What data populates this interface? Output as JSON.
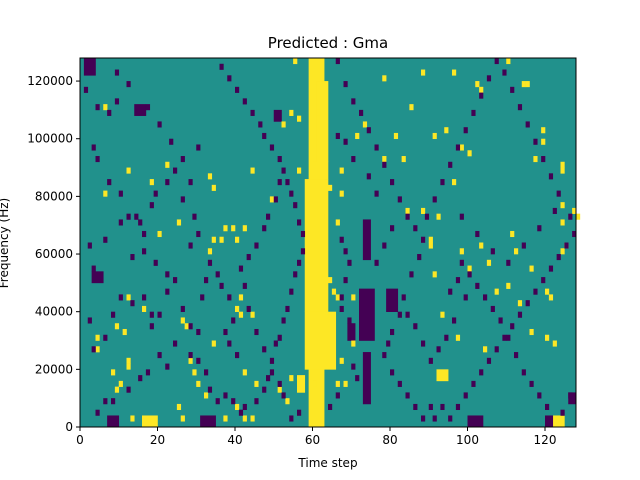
{
  "chart_data": {
    "type": "heatmap",
    "title": "Predicted : Gma",
    "xlabel": "Time step",
    "ylabel": "Frequency (Hz)",
    "xlim": [
      0,
      128
    ],
    "ylim": [
      0,
      128000
    ],
    "x_ticks": [
      0,
      20,
      40,
      60,
      80,
      100,
      120
    ],
    "y_ticks": [
      0,
      20000,
      40000,
      60000,
      80000,
      100000,
      120000
    ],
    "cols": 128,
    "rows": 64,
    "row_height_hz": 2000,
    "grid": false,
    "legend": "none",
    "colors": {
      "background": "#21918c",
      "high": "#fde725",
      "low": "#440154"
    },
    "high_runs": [
      {
        "x0": 59,
        "x1": 63,
        "y0": 0,
        "y1": 128000
      },
      {
        "x0": 58,
        "x1": 66,
        "y0": 20000,
        "y1": 40000
      },
      {
        "x0": 58,
        "x1": 64,
        "y0": 40000,
        "y1": 86000
      },
      {
        "x0": 60,
        "x1": 64,
        "y0": 86000,
        "y1": 92000
      },
      {
        "x0": 61,
        "x1": 64,
        "y0": 92000,
        "y1": 120000
      },
      {
        "x0": 16,
        "x1": 20,
        "y0": 0,
        "y1": 4000
      },
      {
        "x0": 92,
        "x1": 95,
        "y0": 16000,
        "y1": 20000
      },
      {
        "x0": 122,
        "x1": 125,
        "y0": 0,
        "y1": 4000
      },
      {
        "x0": 56,
        "x1": 58,
        "y0": 12000,
        "y1": 18000
      }
    ],
    "low_runs": [
      {
        "x0": 1,
        "x1": 4,
        "y0": 122000,
        "y1": 128000
      },
      {
        "x0": 7,
        "x1": 10,
        "y0": 0,
        "y1": 4000
      },
      {
        "x0": 31,
        "x1": 35,
        "y0": 0,
        "y1": 4000
      },
      {
        "x0": 100,
        "x1": 104,
        "y0": 0,
        "y1": 4000
      },
      {
        "x0": 120,
        "x1": 122,
        "y0": 0,
        "y1": 4000
      },
      {
        "x0": 126,
        "x1": 128,
        "y0": 8000,
        "y1": 12000
      },
      {
        "x0": 72,
        "x1": 76,
        "y0": 30000,
        "y1": 48000
      },
      {
        "x0": 73,
        "x1": 75,
        "y0": 8000,
        "y1": 26000
      },
      {
        "x0": 79,
        "x1": 82,
        "y0": 40000,
        "y1": 48000
      },
      {
        "x0": 73,
        "x1": 75,
        "y0": 58000,
        "y1": 72000
      },
      {
        "x0": 14,
        "x1": 17,
        "y0": 108000,
        "y1": 112000
      },
      {
        "x0": 3,
        "x1": 6,
        "y0": 50000,
        "y1": 54000
      },
      {
        "x0": 69,
        "x1": 71,
        "y0": 30000,
        "y1": 36000
      },
      {
        "x0": 50,
        "x1": 52,
        "y0": 106000,
        "y1": 110000
      }
    ],
    "high_cells": [
      [
        6,
        110000
      ],
      [
        6,
        80000
      ],
      [
        12,
        88000
      ],
      [
        18,
        84000
      ],
      [
        22,
        90000
      ],
      [
        25,
        70000
      ],
      [
        20,
        66000
      ],
      [
        12,
        44000
      ],
      [
        9,
        34000
      ],
      [
        4,
        30000
      ],
      [
        4,
        26000
      ],
      [
        13,
        2000
      ],
      [
        25,
        6000
      ],
      [
        26,
        2000
      ],
      [
        37,
        2000
      ],
      [
        40,
        6000
      ],
      [
        42,
        2000
      ],
      [
        44,
        2000
      ],
      [
        42,
        18000
      ],
      [
        44,
        38000
      ],
      [
        41,
        38000
      ],
      [
        42,
        68000
      ],
      [
        34,
        64000
      ],
      [
        33,
        60000
      ],
      [
        40,
        64000
      ],
      [
        44,
        88000
      ],
      [
        49,
        78000
      ],
      [
        52,
        104000
      ],
      [
        54,
        108000
      ],
      [
        56,
        106000
      ],
      [
        56,
        88000
      ],
      [
        55,
        126000
      ],
      [
        61,
        108000
      ],
      [
        62,
        72000
      ],
      [
        66,
        70000
      ],
      [
        67,
        80000
      ],
      [
        67,
        88000
      ],
      [
        73,
        104000
      ],
      [
        71,
        100000
      ],
      [
        78,
        92000
      ],
      [
        83,
        92000
      ],
      [
        84,
        74000
      ],
      [
        88,
        74000
      ],
      [
        92,
        72000
      ],
      [
        90,
        64000
      ],
      [
        90,
        62000
      ],
      [
        98,
        60000
      ],
      [
        103,
        62000
      ],
      [
        105,
        56000
      ],
      [
        107,
        46000
      ],
      [
        110,
        48000
      ],
      [
        113,
        42000
      ],
      [
        91,
        52000
      ],
      [
        93,
        38000
      ],
      [
        97,
        30000
      ],
      [
        104,
        26000
      ],
      [
        116,
        32000
      ],
      [
        121,
        44000
      ],
      [
        120,
        46000
      ],
      [
        120,
        30000
      ],
      [
        122,
        28000
      ],
      [
        116,
        54000
      ],
      [
        124,
        70000
      ],
      [
        128,
        72000
      ],
      [
        124,
        88000
      ],
      [
        127,
        74000
      ],
      [
        117,
        92000
      ],
      [
        124,
        90000
      ],
      [
        124,
        76000
      ],
      [
        119,
        98000
      ],
      [
        119,
        102000
      ],
      [
        114,
        118000
      ],
      [
        115,
        118000
      ],
      [
        110,
        126000
      ],
      [
        102,
        118000
      ],
      [
        103,
        116000
      ],
      [
        96,
        122000
      ],
      [
        88,
        122000
      ],
      [
        78,
        120000
      ],
      [
        85,
        110000
      ],
      [
        81,
        100000
      ],
      [
        98,
        96000
      ],
      [
        100,
        94000
      ],
      [
        94,
        102000
      ],
      [
        91,
        100000
      ],
      [
        111,
        66000
      ],
      [
        112,
        60000
      ],
      [
        124,
        60000
      ],
      [
        125,
        62000
      ],
      [
        100,
        54000
      ],
      [
        96,
        84000
      ],
      [
        64,
        82000
      ],
      [
        64,
        50000
      ],
      [
        65,
        46000
      ],
      [
        66,
        44000
      ],
      [
        70,
        44000
      ],
      [
        70,
        28000
      ],
      [
        67,
        22000
      ],
      [
        66,
        14000
      ],
      [
        68,
        14000
      ],
      [
        60,
        14000
      ],
      [
        54,
        16000
      ],
      [
        51,
        12000
      ],
      [
        53,
        8000
      ],
      [
        45,
        14000
      ],
      [
        41,
        44000
      ],
      [
        40,
        40000
      ],
      [
        36,
        64000
      ],
      [
        37,
        68000
      ],
      [
        39,
        68000
      ],
      [
        34,
        82000
      ],
      [
        33,
        86000
      ],
      [
        26,
        36000
      ],
      [
        27,
        34000
      ],
      [
        34,
        28000
      ],
      [
        28,
        22000
      ],
      [
        29,
        18000
      ],
      [
        32,
        10000
      ],
      [
        30,
        14000
      ],
      [
        16,
        40000
      ],
      [
        11,
        32000
      ],
      [
        12,
        22000
      ],
      [
        12,
        20000
      ],
      [
        10,
        14000
      ],
      [
        9,
        12000
      ],
      [
        8,
        18000
      ]
    ],
    "low_cells": [
      [
        1,
        116000
      ],
      [
        4,
        110000
      ],
      [
        7,
        108000
      ],
      [
        9,
        112000
      ],
      [
        3,
        96000
      ],
      [
        4,
        92000
      ],
      [
        7,
        84000
      ],
      [
        10,
        80000
      ],
      [
        10,
        70000
      ],
      [
        12,
        72000
      ],
      [
        14,
        72000
      ],
      [
        15,
        70000
      ],
      [
        6,
        64000
      ],
      [
        2,
        62000
      ],
      [
        3,
        54000
      ],
      [
        13,
        58000
      ],
      [
        16,
        60000
      ],
      [
        19,
        56000
      ],
      [
        22,
        52000
      ],
      [
        24,
        50000
      ],
      [
        22,
        46000
      ],
      [
        26,
        40000
      ],
      [
        28,
        34000
      ],
      [
        30,
        32000
      ],
      [
        18,
        34000
      ],
      [
        18,
        38000
      ],
      [
        20,
        24000
      ],
      [
        22,
        20000
      ],
      [
        17,
        18000
      ],
      [
        15,
        16000
      ],
      [
        12,
        12000
      ],
      [
        8,
        8000
      ],
      [
        6,
        8000
      ],
      [
        4,
        4000
      ],
      [
        3,
        26000
      ],
      [
        2,
        36000
      ],
      [
        6,
        30000
      ],
      [
        8,
        38000
      ],
      [
        10,
        44000
      ],
      [
        13,
        42000
      ],
      [
        16,
        44000
      ],
      [
        20,
        38000
      ],
      [
        24,
        28000
      ],
      [
        28,
        24000
      ],
      [
        30,
        22000
      ],
      [
        32,
        18000
      ],
      [
        33,
        12000
      ],
      [
        35,
        8000
      ],
      [
        37,
        10000
      ],
      [
        39,
        8000
      ],
      [
        41,
        4000
      ],
      [
        42,
        6000
      ],
      [
        45,
        8000
      ],
      [
        47,
        12000
      ],
      [
        48,
        16000
      ],
      [
        49,
        22000
      ],
      [
        50,
        28000
      ],
      [
        51,
        30000
      ],
      [
        52,
        36000
      ],
      [
        53,
        40000
      ],
      [
        54,
        46000
      ],
      [
        55,
        52000
      ],
      [
        56,
        56000
      ],
      [
        57,
        60000
      ],
      [
        57,
        66000
      ],
      [
        56,
        70000
      ],
      [
        55,
        76000
      ],
      [
        54,
        80000
      ],
      [
        53,
        84000
      ],
      [
        51,
        92000
      ],
      [
        49,
        96000
      ],
      [
        47,
        100000
      ],
      [
        46,
        104000
      ],
      [
        44,
        108000
      ],
      [
        42,
        112000
      ],
      [
        40,
        116000
      ],
      [
        38,
        120000
      ],
      [
        36,
        124000
      ],
      [
        30,
        96000
      ],
      [
        26,
        92000
      ],
      [
        24,
        88000
      ],
      [
        22,
        84000
      ],
      [
        19,
        80000
      ],
      [
        18,
        76000
      ],
      [
        16,
        66000
      ],
      [
        35,
        52000
      ],
      [
        36,
        48000
      ],
      [
        38,
        44000
      ],
      [
        39,
        36000
      ],
      [
        37,
        32000
      ],
      [
        38,
        28000
      ],
      [
        40,
        24000
      ],
      [
        31,
        44000
      ],
      [
        32,
        50000
      ],
      [
        33,
        56000
      ],
      [
        28,
        62000
      ],
      [
        30,
        66000
      ],
      [
        29,
        72000
      ],
      [
        26,
        78000
      ],
      [
        28,
        84000
      ],
      [
        23,
        98000
      ],
      [
        20,
        104000
      ],
      [
        17,
        110000
      ],
      [
        12,
        118000
      ],
      [
        9,
        122000
      ],
      [
        66,
        126000
      ],
      [
        68,
        118000
      ],
      [
        70,
        112000
      ],
      [
        72,
        108000
      ],
      [
        74,
        102000
      ],
      [
        76,
        96000
      ],
      [
        78,
        90000
      ],
      [
        80,
        84000
      ],
      [
        82,
        78000
      ],
      [
        84,
        72000
      ],
      [
        86,
        68000
      ],
      [
        88,
        64000
      ],
      [
        87,
        58000
      ],
      [
        85,
        52000
      ],
      [
        83,
        44000
      ],
      [
        82,
        38000
      ],
      [
        80,
        32000
      ],
      [
        79,
        28000
      ],
      [
        78,
        24000
      ],
      [
        80,
        18000
      ],
      [
        82,
        14000
      ],
      [
        84,
        10000
      ],
      [
        86,
        6000
      ],
      [
        88,
        2000
      ],
      [
        90,
        6000
      ],
      [
        91,
        2000
      ],
      [
        93,
        6000
      ],
      [
        95,
        2000
      ],
      [
        97,
        6000
      ],
      [
        99,
        10000
      ],
      [
        101,
        14000
      ],
      [
        103,
        18000
      ],
      [
        105,
        22000
      ],
      [
        107,
        26000
      ],
      [
        109,
        30000
      ],
      [
        111,
        34000
      ],
      [
        113,
        38000
      ],
      [
        115,
        42000
      ],
      [
        117,
        46000
      ],
      [
        119,
        50000
      ],
      [
        121,
        54000
      ],
      [
        123,
        58000
      ],
      [
        125,
        62000
      ],
      [
        127,
        66000
      ],
      [
        126,
        72000
      ],
      [
        123,
        80000
      ],
      [
        121,
        86000
      ],
      [
        119,
        92000
      ],
      [
        117,
        98000
      ],
      [
        115,
        104000
      ],
      [
        113,
        110000
      ],
      [
        111,
        116000
      ],
      [
        109,
        122000
      ],
      [
        107,
        126000
      ],
      [
        105,
        120000
      ],
      [
        103,
        114000
      ],
      [
        101,
        108000
      ],
      [
        99,
        102000
      ],
      [
        97,
        96000
      ],
      [
        95,
        90000
      ],
      [
        93,
        84000
      ],
      [
        91,
        78000
      ],
      [
        89,
        72000
      ],
      [
        98,
        56000
      ],
      [
        100,
        52000
      ],
      [
        102,
        48000
      ],
      [
        104,
        44000
      ],
      [
        106,
        40000
      ],
      [
        108,
        36000
      ],
      [
        110,
        30000
      ],
      [
        112,
        24000
      ],
      [
        114,
        18000
      ],
      [
        116,
        14000
      ],
      [
        118,
        10000
      ],
      [
        120,
        6000
      ],
      [
        124,
        4000
      ],
      [
        126,
        10000
      ],
      [
        96,
        36000
      ],
      [
        94,
        30000
      ],
      [
        92,
        26000
      ],
      [
        90,
        22000
      ],
      [
        88,
        28000
      ],
      [
        86,
        34000
      ],
      [
        84,
        38000
      ],
      [
        98,
        72000
      ],
      [
        102,
        66000
      ],
      [
        106,
        60000
      ],
      [
        110,
        56000
      ],
      [
        114,
        62000
      ],
      [
        118,
        68000
      ],
      [
        122,
        74000
      ],
      [
        95,
        46000
      ],
      [
        97,
        50000
      ],
      [
        99,
        44000
      ],
      [
        76,
        56000
      ],
      [
        78,
        62000
      ],
      [
        80,
        68000
      ],
      [
        76,
        80000
      ],
      [
        74,
        86000
      ],
      [
        70,
        92000
      ],
      [
        68,
        98000
      ],
      [
        66,
        100000
      ],
      [
        67,
        64000
      ],
      [
        68,
        60000
      ],
      [
        69,
        56000
      ],
      [
        68,
        50000
      ],
      [
        67,
        44000
      ],
      [
        67,
        40000
      ],
      [
        69,
        36000
      ],
      [
        70,
        20000
      ],
      [
        71,
        16000
      ],
      [
        66,
        10000
      ],
      [
        64,
        6000
      ],
      [
        56,
        4000
      ],
      [
        54,
        2000
      ],
      [
        52,
        10000
      ],
      [
        51,
        14000
      ],
      [
        49,
        18000
      ],
      [
        47,
        26000
      ],
      [
        45,
        32000
      ],
      [
        43,
        40000
      ],
      [
        42,
        48000
      ],
      [
        41,
        54000
      ],
      [
        43,
        58000
      ],
      [
        45,
        62000
      ],
      [
        47,
        68000
      ],
      [
        48,
        72000
      ],
      [
        50,
        78000
      ],
      [
        51,
        84000
      ],
      [
        52,
        88000
      ]
    ]
  }
}
